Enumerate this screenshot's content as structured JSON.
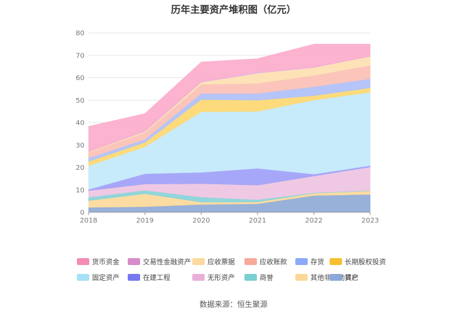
{
  "chart_data": {
    "type": "area",
    "stacked": true,
    "title": "历年主要资产堆积图（亿元）",
    "xlabel": "",
    "ylabel": "",
    "ylim": [
      0,
      80
    ],
    "yticks": [
      0,
      10,
      20,
      30,
      40,
      50,
      60,
      70,
      80
    ],
    "categories": [
      "2018",
      "2019",
      "2020",
      "2021",
      "2022",
      "2023"
    ],
    "grid": true,
    "legend_position": "bottom",
    "series": [
      {
        "name": "其它",
        "color": "#8faad6",
        "values": [
          2.2,
          2.5,
          3.5,
          3.8,
          7.5,
          8.0
        ]
      },
      {
        "name": "其他非流动资产",
        "color": "#fcd99a",
        "values": [
          3.0,
          5.8,
          1.0,
          0.8,
          1.0,
          1.5
        ]
      },
      {
        "name": "商誉",
        "color": "#88d3d8",
        "values": [
          1.5,
          1.5,
          2.3,
          1.0,
          0.2,
          0.2
        ]
      },
      {
        "name": "无形资产",
        "color": "#eec4e2",
        "values": [
          3.0,
          2.8,
          6.0,
          6.5,
          7.5,
          10.5
        ]
      },
      {
        "name": "在建工程",
        "color": "#9f9ff8",
        "values": [
          0.5,
          4.6,
          5.0,
          7.5,
          0.8,
          0.6
        ]
      },
      {
        "name": "固定资产",
        "color": "#c3e9fb",
        "values": [
          10.5,
          12.0,
          27.0,
          25.4,
          33.0,
          32.7
        ]
      },
      {
        "name": "长期股权投资",
        "color": "#fdd872",
        "values": [
          2.0,
          2.0,
          5.5,
          5.0,
          2.0,
          2.0
        ]
      },
      {
        "name": "存货",
        "color": "#afc0f8",
        "values": [
          1.5,
          1.3,
          2.7,
          3.0,
          4.0,
          4.0
        ]
      },
      {
        "name": "应收账款",
        "color": "#fbc0b6",
        "values": [
          2.5,
          3.0,
          4.0,
          4.5,
          5.0,
          6.0
        ]
      },
      {
        "name": "应收票据",
        "color": "#fde0b2",
        "values": [
          0.3,
          0.5,
          1.0,
          4.5,
          3.5,
          4.0
        ]
      },
      {
        "name": "交易性金融资产",
        "color": "#e7b6df",
        "values": [
          0.2,
          0.5,
          0.3,
          0.5,
          0.3,
          0.2
        ]
      },
      {
        "name": "货币资金",
        "color": "#fcaccb",
        "values": [
          11.1,
          7.5,
          8.7,
          6.0,
          10.2,
          5.3
        ]
      }
    ],
    "legend_order": [
      "货币资金",
      "交易性金融资产",
      "应收票据",
      "应收账款",
      "存货",
      "长期股权投资",
      "固定资产",
      "在建工程",
      "无形资产",
      "商誉",
      "其他非流动资产",
      "其它"
    ],
    "legend_colors": {
      "货币资金": "#f48cb4",
      "交易性金融资产": "#d88cc8",
      "应收票据": "#fdd8a0",
      "应收账款": "#f8a89a",
      "存货": "#8ca8f8",
      "长期股权投资": "#f8c030",
      "固定资产": "#a8e0f8",
      "在建工程": "#7878f0",
      "无形资产": "#e8b0d8",
      "商誉": "#78d0d0",
      "其他非流动资产": "#fcd898",
      "其它": "#8ca8d8"
    },
    "source": "数据来源：恒生聚源"
  }
}
